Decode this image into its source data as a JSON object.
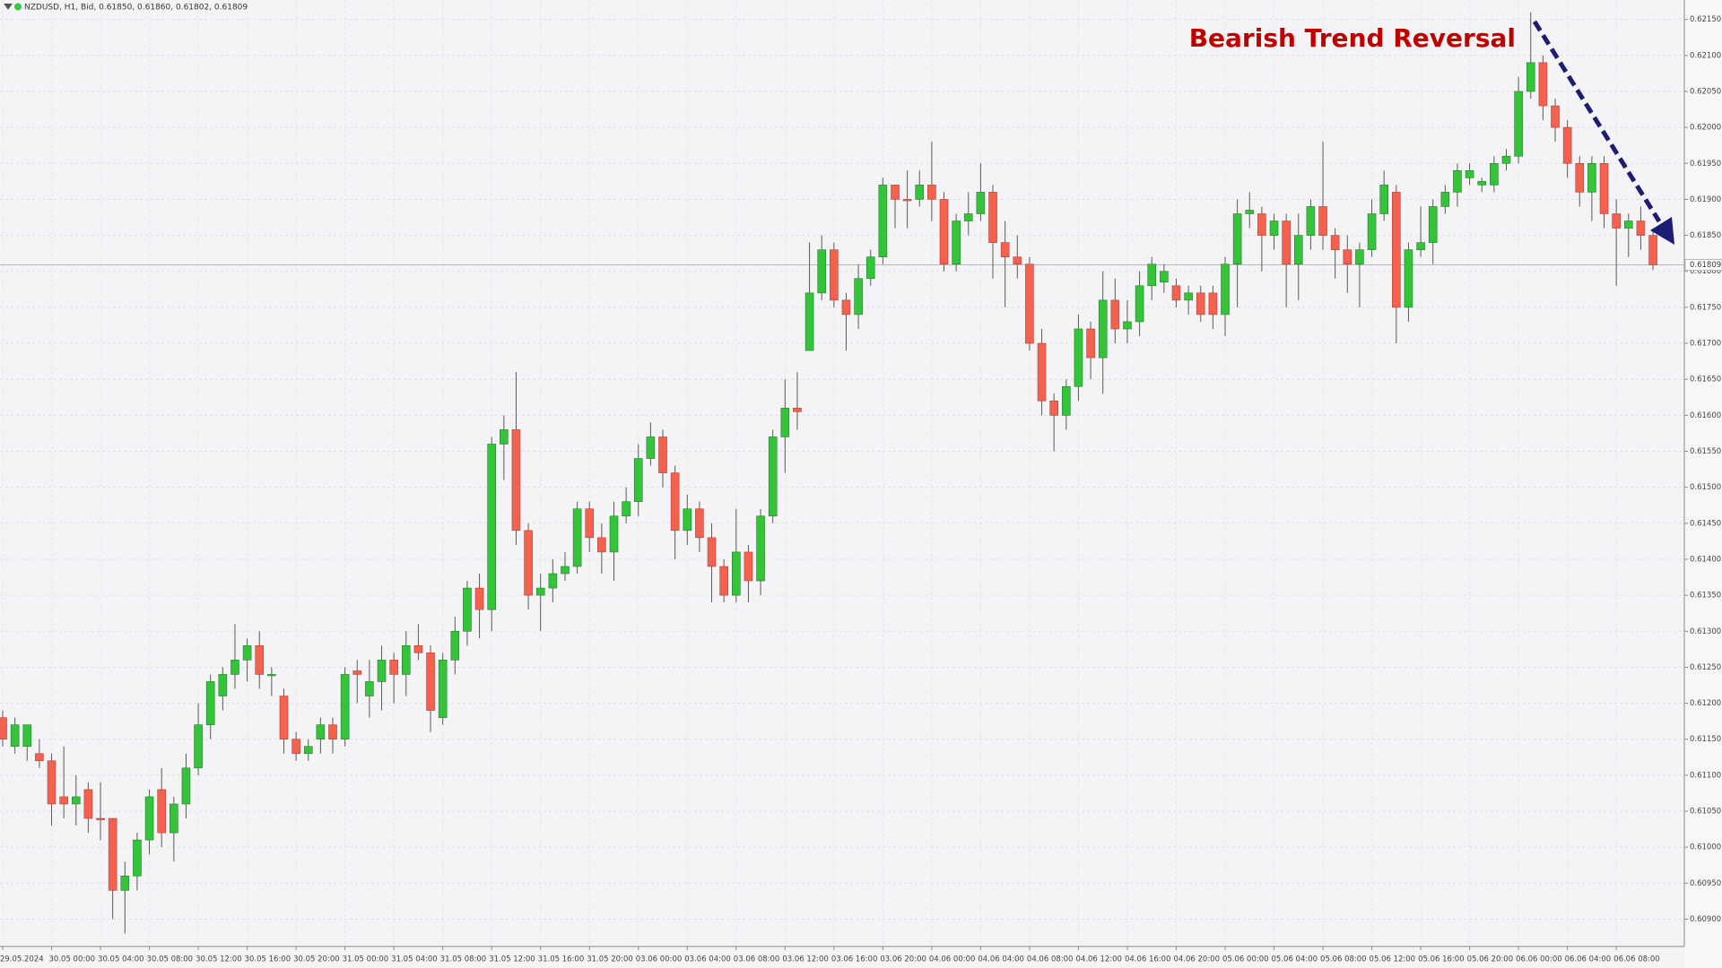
{
  "chart_data": {
    "type": "candlestick",
    "title": "NZDUSD, H1, Bid, 0.61850, 0.61860, 0.61802, 0.61809",
    "annotation": "Bearish Trend Reversal",
    "up_color": "#33c43a",
    "down_color": "#f4614f",
    "grid": true,
    "last_price": 0.61809,
    "ylim": [
      0.60862,
      0.62177
    ],
    "yticks": [
      {
        "value": 0.609,
        "label": "0.60900"
      },
      {
        "value": 0.6095,
        "label": "0.60950"
      },
      {
        "value": 0.61,
        "label": "0.61000"
      },
      {
        "value": 0.6105,
        "label": "0.61050"
      },
      {
        "value": 0.611,
        "label": "0.61100"
      },
      {
        "value": 0.6115,
        "label": "0.61150"
      },
      {
        "value": 0.612,
        "label": "0.61200"
      },
      {
        "value": 0.6125,
        "label": "0.61250"
      },
      {
        "value": 0.613,
        "label": "0.61300"
      },
      {
        "value": 0.6135,
        "label": "0.61350"
      },
      {
        "value": 0.614,
        "label": "0.61400"
      },
      {
        "value": 0.6145,
        "label": "0.61450"
      },
      {
        "value": 0.615,
        "label": "0.61500"
      },
      {
        "value": 0.6155,
        "label": "0.61550"
      },
      {
        "value": 0.616,
        "label": "0.61600"
      },
      {
        "value": 0.6165,
        "label": "0.61650"
      },
      {
        "value": 0.617,
        "label": "0.61700"
      },
      {
        "value": 0.6175,
        "label": "0.61750"
      },
      {
        "value": 0.618,
        "label": "0.61800"
      },
      {
        "value": 0.6185,
        "label": "0.61850"
      },
      {
        "value": 0.619,
        "label": "0.61900"
      },
      {
        "value": 0.6195,
        "label": "0.61950"
      },
      {
        "value": 0.62,
        "label": "0.62000"
      },
      {
        "value": 0.6205,
        "label": "0.62050"
      },
      {
        "value": 0.621,
        "label": "0.62100"
      },
      {
        "value": 0.6215,
        "label": "0.62150"
      }
    ],
    "categories": [
      "29.05.2024",
      null,
      null,
      null,
      "30.05 00:00",
      null,
      null,
      null,
      "30.05 04:00",
      null,
      null,
      null,
      "30.05 08:00",
      null,
      null,
      null,
      "30.05 12:00",
      null,
      null,
      null,
      "30.05 16:00",
      null,
      null,
      null,
      "30.05 20:00",
      null,
      null,
      null,
      "31.05 00:00",
      null,
      null,
      null,
      "31.05 04:00",
      null,
      null,
      null,
      "31.05 08:00",
      null,
      null,
      null,
      "31.05 12:00",
      null,
      null,
      null,
      "31.05 16:00",
      null,
      null,
      null,
      "31.05 20:00",
      null,
      null,
      null,
      "03.06 00:00",
      null,
      null,
      null,
      "03.06 04:00",
      null,
      null,
      null,
      "03.06 08:00",
      null,
      null,
      null,
      "03.06 12:00",
      null,
      null,
      null,
      "03.06 16:00",
      null,
      null,
      null,
      "03.06 20:00",
      null,
      null,
      null,
      "04.06 00:00",
      null,
      null,
      null,
      "04.06 04:00",
      null,
      null,
      null,
      "04.06 08:00",
      null,
      null,
      null,
      "04.06 12:00",
      null,
      null,
      null,
      "04.06 16:00",
      null,
      null,
      null,
      "04.06 20:00",
      null,
      null,
      null,
      "05.06 00:00",
      null,
      null,
      null,
      "05.06 04:00",
      null,
      null,
      null,
      "05.06 08:00",
      null,
      null,
      null,
      "05.06 12:00",
      null,
      null,
      null,
      "05.06 16:00",
      null,
      null,
      null,
      "05.06 20:00",
      null,
      null,
      null,
      "06.06 00:00",
      null,
      null,
      null,
      "06.06 04:00",
      null,
      null,
      null,
      "06.06 08:00",
      null,
      null,
      null
    ],
    "open": [
      0.6118,
      0.6114,
      0.6114,
      0.6113,
      0.6112,
      0.6107,
      0.6106,
      0.6108,
      0.6104,
      0.6104,
      0.6094,
      0.6096,
      0.6101,
      0.6108,
      0.6102,
      0.6106,
      0.6111,
      0.6117,
      0.6121,
      0.6124,
      0.6126,
      0.6128,
      0.6124,
      0.6121,
      0.6115,
      0.6113,
      0.6115,
      0.6117,
      0.6115,
      0.61245,
      0.6121,
      0.6123,
      0.6126,
      0.6124,
      0.6128,
      0.6127,
      0.6118,
      0.6126,
      0.613,
      0.6136,
      0.6133,
      0.6156,
      0.6158,
      0.6144,
      0.6135,
      0.6136,
      0.6138,
      0.6139,
      0.6147,
      0.6143,
      0.6141,
      0.6146,
      0.6148,
      0.6154,
      0.6157,
      0.6152,
      0.6144,
      0.6147,
      0.6143,
      0.6139,
      0.6135,
      0.6141,
      0.6137,
      0.6146,
      0.6157,
      0.6161,
      0.6169,
      0.6177,
      0.6183,
      0.6176,
      0.6174,
      0.6179,
      0.6182,
      0.6192,
      0.619,
      0.619,
      0.6192,
      0.619,
      0.6181,
      0.6187,
      0.6188,
      0.6191,
      0.6184,
      0.6182,
      0.6181,
      0.617,
      0.6162,
      0.616,
      0.6164,
      0.6172,
      0.6168,
      0.6176,
      0.6172,
      0.6173,
      0.6178,
      0.61785,
      0.6178,
      0.6176,
      0.6177,
      0.6177,
      0.6174,
      0.6181,
      0.6188,
      0.6188,
      0.6185,
      0.6187,
      0.6181,
      0.6185,
      0.6189,
      0.6185,
      0.6183,
      0.6181,
      0.6183,
      0.6188,
      0.6191,
      0.6175,
      0.6183,
      0.6184,
      0.6189,
      0.6191,
      0.6193,
      0.6192,
      0.6192,
      0.6195,
      0.6196,
      0.6205,
      0.6209,
      0.6203,
      0.62,
      0.6195,
      0.6191,
      0.6195,
      0.6188,
      0.6186,
      0.6187,
      0.6185
    ],
    "high": [
      0.6119,
      0.6118,
      0.6117,
      0.6115,
      0.6113,
      0.6114,
      0.611,
      0.6109,
      0.6109,
      0.6104,
      0.6098,
      0.6102,
      0.6108,
      0.6111,
      0.6107,
      0.6113,
      0.612,
      0.6124,
      0.6125,
      0.6131,
      0.6129,
      0.613,
      0.6125,
      0.6122,
      0.6116,
      0.6115,
      0.6118,
      0.6118,
      0.6125,
      0.6126,
      0.6126,
      0.6128,
      0.6127,
      0.613,
      0.6131,
      0.6128,
      0.6127,
      0.6132,
      0.6137,
      0.6138,
      0.6157,
      0.616,
      0.6166,
      0.6145,
      0.6138,
      0.614,
      0.6141,
      0.6148,
      0.6148,
      0.6145,
      0.6148,
      0.615,
      0.6156,
      0.6159,
      0.6158,
      0.6153,
      0.6149,
      0.6148,
      0.6145,
      0.614,
      0.6147,
      0.6142,
      0.6147,
      0.6158,
      0.6165,
      0.6166,
      0.6184,
      0.6185,
      0.6184,
      0.6177,
      0.6181,
      0.6183,
      0.6193,
      0.6192,
      0.6194,
      0.6194,
      0.6198,
      0.6191,
      0.6188,
      0.6191,
      0.6195,
      0.6192,
      0.6187,
      0.6185,
      0.6182,
      0.6172,
      0.6163,
      0.6165,
      0.6174,
      0.6173,
      0.618,
      0.6179,
      0.6176,
      0.618,
      0.6182,
      0.6181,
      0.6179,
      0.6178,
      0.6178,
      0.6178,
      0.6182,
      0.619,
      0.6191,
      0.6189,
      0.6188,
      0.6188,
      0.6188,
      0.619,
      0.6198,
      0.6186,
      0.6185,
      0.6184,
      0.619,
      0.6194,
      0.6192,
      0.6184,
      0.6189,
      0.619,
      0.6192,
      0.6195,
      0.6195,
      0.6193,
      0.6196,
      0.6197,
      0.6207,
      0.6216,
      0.621,
      0.6204,
      0.6201,
      0.6196,
      0.6196,
      0.6196,
      0.619,
      0.6188,
      0.6189,
      0.6186
    ],
    "low": [
      0.6114,
      0.6113,
      0.6112,
      0.6111,
      0.6103,
      0.6104,
      0.6103,
      0.6102,
      0.6101,
      0.609,
      0.6088,
      0.6094,
      0.6099,
      0.61,
      0.6098,
      0.6104,
      0.611,
      0.6115,
      0.6119,
      0.6122,
      0.6123,
      0.6122,
      0.6121,
      0.6113,
      0.6112,
      0.6112,
      0.6113,
      0.6113,
      0.6114,
      0.612,
      0.6118,
      0.6119,
      0.612,
      0.6121,
      0.6126,
      0.6116,
      0.6117,
      0.6124,
      0.6128,
      0.6129,
      0.613,
      0.6151,
      0.6142,
      0.6133,
      0.613,
      0.6134,
      0.6137,
      0.6138,
      0.6141,
      0.6138,
      0.6137,
      0.6145,
      0.6146,
      0.6153,
      0.615,
      0.614,
      0.6142,
      0.6141,
      0.6134,
      0.6134,
      0.6134,
      0.6134,
      0.6135,
      0.6145,
      0.6152,
      0.6158,
      0.6169,
      0.6176,
      0.6175,
      0.6169,
      0.6172,
      0.6178,
      0.6181,
      0.6186,
      0.6186,
      0.6189,
      0.6187,
      0.618,
      0.618,
      0.6185,
      0.6187,
      0.6179,
      0.6175,
      0.6179,
      0.6169,
      0.616,
      0.6155,
      0.6158,
      0.6162,
      0.6165,
      0.6163,
      0.617,
      0.617,
      0.6171,
      0.6176,
      0.6177,
      0.6175,
      0.6174,
      0.6173,
      0.6172,
      0.6171,
      0.6175,
      0.6186,
      0.618,
      0.6183,
      0.6175,
      0.6176,
      0.6183,
      0.6183,
      0.6179,
      0.6177,
      0.6175,
      0.6182,
      0.6187,
      0.617,
      0.6173,
      0.6182,
      0.6181,
      0.6188,
      0.6189,
      0.6192,
      0.6191,
      0.6191,
      0.6194,
      0.6195,
      0.6204,
      0.6201,
      0.6198,
      0.6193,
      0.6189,
      0.6187,
      0.6186,
      0.6178,
      0.6182,
      0.6183,
      0.61802
    ],
    "close": [
      0.6115,
      0.6117,
      0.6117,
      0.6112,
      0.6106,
      0.6106,
      0.6107,
      0.6104,
      0.61038,
      0.6094,
      0.6096,
      0.6101,
      0.6107,
      0.6102,
      0.6106,
      0.6111,
      0.6117,
      0.6123,
      0.6124,
      0.6126,
      0.6128,
      0.6124,
      0.6124,
      0.6115,
      0.6113,
      0.6114,
      0.6117,
      0.6115,
      0.6124,
      0.6124,
      0.6123,
      0.6126,
      0.6124,
      0.6128,
      0.6127,
      0.6119,
      0.6126,
      0.613,
      0.6136,
      0.6133,
      0.6156,
      0.6158,
      0.6144,
      0.6135,
      0.6136,
      0.6138,
      0.6139,
      0.6147,
      0.6143,
      0.6141,
      0.6146,
      0.6148,
      0.6154,
      0.6157,
      0.6152,
      0.6144,
      0.6147,
      0.6143,
      0.6139,
      0.6135,
      0.6141,
      0.6137,
      0.6146,
      0.6157,
      0.6161,
      0.61605,
      0.6177,
      0.6183,
      0.6176,
      0.6174,
      0.6179,
      0.6182,
      0.6192,
      0.619,
      0.61898,
      0.6192,
      0.619,
      0.6181,
      0.6187,
      0.6188,
      0.6191,
      0.6184,
      0.6182,
      0.6181,
      0.617,
      0.6162,
      0.616,
      0.6164,
      0.6172,
      0.6168,
      0.6176,
      0.6172,
      0.6173,
      0.6178,
      0.6181,
      0.618,
      0.6176,
      0.6177,
      0.6174,
      0.6174,
      0.6181,
      0.6188,
      0.61885,
      0.6185,
      0.6187,
      0.6181,
      0.6185,
      0.6189,
      0.6185,
      0.6183,
      0.6181,
      0.6183,
      0.6188,
      0.6192,
      0.6175,
      0.6183,
      0.6184,
      0.6189,
      0.6191,
      0.6194,
      0.6194,
      0.61925,
      0.6195,
      0.6196,
      0.6205,
      0.6209,
      0.6203,
      0.62,
      0.6195,
      0.6191,
      0.6195,
      0.6188,
      0.6186,
      0.6187,
      0.6185,
      0.61809
    ]
  }
}
